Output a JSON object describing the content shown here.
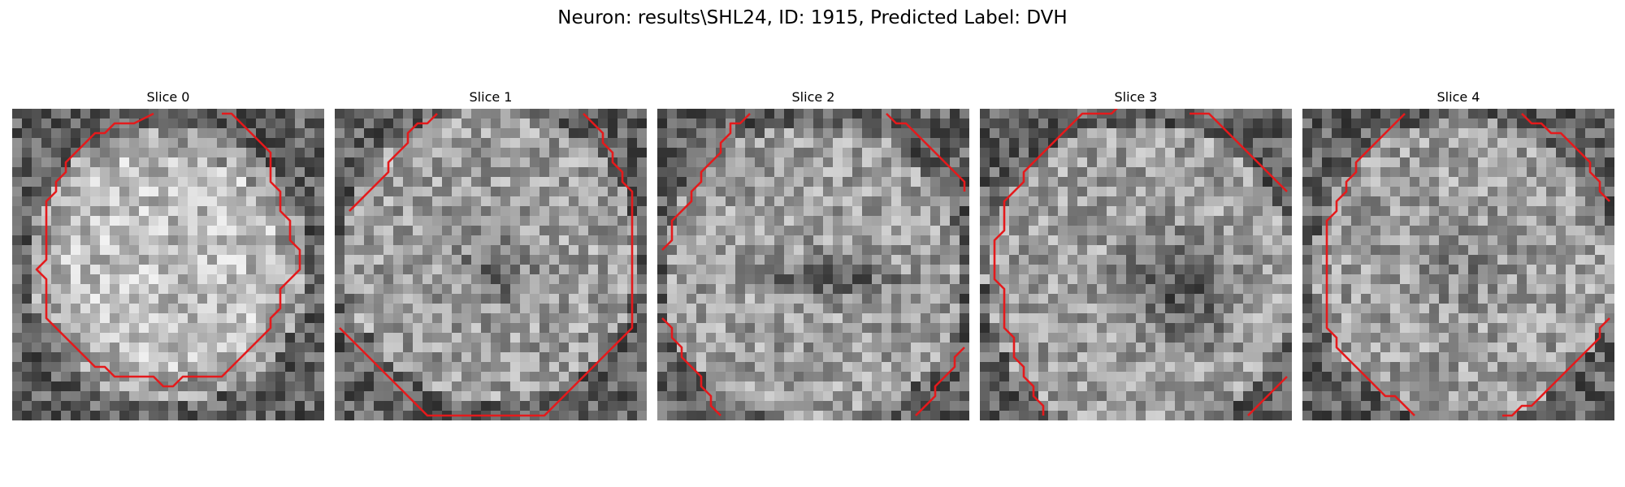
{
  "figure": {
    "title": "Neuron: results\\SHL24, ID: 1915, Predicted Label: DVH"
  },
  "panels": [
    {
      "title": "Slice 0",
      "center_tone": "bright",
      "contour_color": "#e41a1c"
    },
    {
      "title": "Slice 1",
      "center_tone": "dark-small",
      "contour_color": "#e41a1c"
    },
    {
      "title": "Slice 2",
      "center_tone": "dark-band",
      "contour_color": "#e41a1c"
    },
    {
      "title": "Slice 3",
      "center_tone": "dark-large",
      "contour_color": "#e41a1c"
    },
    {
      "title": "Slice 4",
      "center_tone": "dark-faint",
      "contour_color": "#e41a1c"
    }
  ],
  "colors": {
    "contour": "#e41a1c",
    "colormap": "gray"
  }
}
